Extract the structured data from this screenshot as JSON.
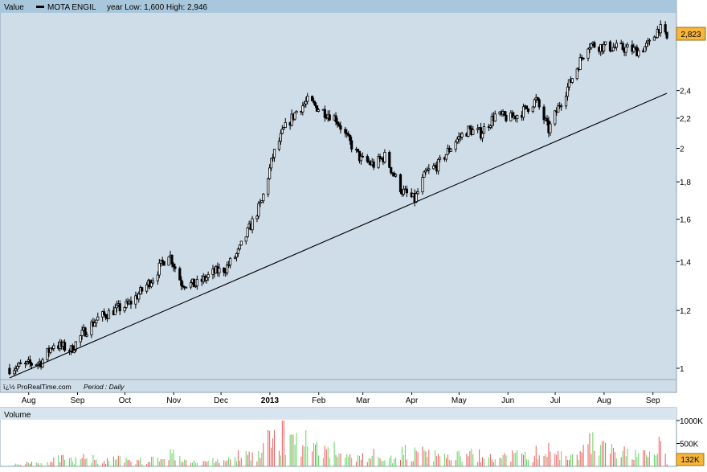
{
  "header": {
    "value_label": "Value",
    "instrument": "MOTA ENGIL",
    "range_text": "year Low: 1,600 High: 2,946"
  },
  "footer": {
    "source": "ï¿½ ProRealTime.com",
    "period": "Period : Daily"
  },
  "volume_panel": {
    "title": "Volume"
  },
  "chart_data": [
    {
      "type": "candlestick",
      "title": "MOTA ENGIL",
      "scale": "log",
      "ylim": [
        0.97,
        3.02
      ],
      "y_ticks": [
        1,
        1.2,
        1.4,
        1.6,
        1.8,
        2,
        2.2,
        2.4
      ],
      "y_tick_labels": [
        "1",
        "1,2",
        "1,4",
        "1,6",
        "1,8",
        "2",
        "2,2",
        "2,4"
      ],
      "last_value": 2.823,
      "last_value_label": "2,823",
      "year_low": 1.6,
      "year_high": 2.946,
      "x_labels": [
        "Aug",
        "Sep",
        "Oct",
        "Nov",
        "Dec",
        "2013",
        "Feb",
        "Mar",
        "Apr",
        "May",
        "Jun",
        "Jul",
        "Aug",
        "Sep"
      ],
      "x_label_bold": [
        false,
        false,
        false,
        false,
        false,
        true,
        false,
        false,
        false,
        false,
        false,
        false,
        false,
        false
      ],
      "dates": [
        "2012-07-27",
        "2012-08-06",
        "2012-08-16",
        "2012-08-24",
        "2012-09-04",
        "2012-09-12",
        "2012-09-21",
        "2012-10-01",
        "2012-10-10",
        "2012-10-18",
        "2012-10-26",
        "2012-11-05",
        "2012-11-13",
        "2012-11-22",
        "2012-12-03",
        "2012-12-11",
        "2012-12-19",
        "2013-01-03",
        "2013-01-10",
        "2013-01-17",
        "2013-01-25",
        "2013-02-01",
        "2013-02-11",
        "2013-02-19",
        "2013-02-27",
        "2013-03-07",
        "2013-03-15",
        "2013-03-22",
        "2013-04-02",
        "2013-04-10",
        "2013-04-17",
        "2013-04-25",
        "2013-05-06",
        "2013-05-14",
        "2013-05-22",
        "2013-05-31",
        "2013-06-10",
        "2013-06-18",
        "2013-06-26",
        "2013-07-04",
        "2013-07-11",
        "2013-07-19",
        "2013-07-29",
        "2013-08-06",
        "2013-08-14",
        "2013-08-22",
        "2013-08-30",
        "2013-09-06",
        "2013-09-12",
        "2013-09-17"
      ],
      "close": [
        1.0,
        1.01,
        1.02,
        1.08,
        1.06,
        1.12,
        1.17,
        1.2,
        1.22,
        1.27,
        1.33,
        1.44,
        1.31,
        1.3,
        1.35,
        1.37,
        1.44,
        1.69,
        1.95,
        2.12,
        2.25,
        2.32,
        2.25,
        2.2,
        2.05,
        1.93,
        1.9,
        1.95,
        1.75,
        1.7,
        1.85,
        1.9,
        2.05,
        2.12,
        2.1,
        2.22,
        2.2,
        2.25,
        2.33,
        2.12,
        2.3,
        2.5,
        2.78,
        2.76,
        2.75,
        2.74,
        2.72,
        2.78,
        2.93,
        2.82
      ],
      "trendline": [
        [
          "2012-07-27",
          0.97
        ],
        [
          "2013-09-17",
          2.38
        ]
      ],
      "volume": {
        "ylim": [
          0,
          1000000
        ],
        "y_ticks": [
          500000,
          1000000
        ],
        "y_tick_labels": [
          "500K",
          "1000K"
        ],
        "last_value_label": "132K",
        "values": [
          60000,
          130000,
          90000,
          220000,
          180000,
          250000,
          160000,
          210000,
          140000,
          180000,
          230000,
          380000,
          150000,
          120000,
          170000,
          200000,
          330000,
          700000,
          900000,
          980000,
          750000,
          640000,
          520000,
          330000,
          300000,
          260000,
          380000,
          220000,
          420000,
          380000,
          340000,
          280000,
          300000,
          350000,
          240000,
          280000,
          320000,
          300000,
          420000,
          460000,
          340000,
          460000,
          700000,
          580000,
          400000,
          360000,
          330000,
          300000,
          620000,
          132000
        ],
        "up": [
          true,
          true,
          false,
          true,
          false,
          true,
          true,
          true,
          false,
          true,
          true,
          true,
          false,
          false,
          true,
          true,
          true,
          true,
          true,
          true,
          true,
          true,
          false,
          false,
          false,
          false,
          false,
          true,
          false,
          false,
          true,
          true,
          true,
          true,
          false,
          true,
          false,
          true,
          true,
          false,
          true,
          true,
          true,
          false,
          false,
          false,
          false,
          true,
          true,
          false
        ]
      }
    }
  ],
  "colors": {
    "plot_bg": "#cfdde9",
    "header_bg": "#a9c7dc",
    "candle": "#000000",
    "trendline": "#000000",
    "volume_up": "#5fd45f",
    "volume_down": "#ef5a5a",
    "price_badge": "#f7b53a"
  }
}
